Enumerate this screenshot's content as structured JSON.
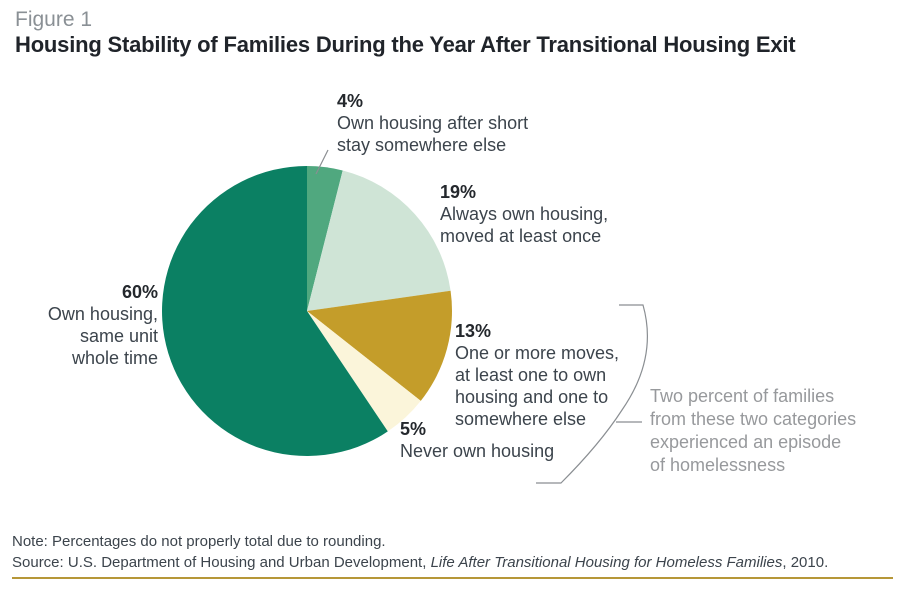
{
  "header": {
    "figure_label": "Figure 1",
    "title": "Housing Stability of Families During the Year After Transitional Housing Exit"
  },
  "chart_data": {
    "type": "pie",
    "title": "Housing Stability of Families During the Year After Transitional Housing Exit",
    "figure_label": "Figure 1",
    "start_angle_deg": -90,
    "direction": "clockwise",
    "legend_position": "labels-around-pie",
    "segments": [
      {
        "pct_label": "4%",
        "value": 4,
        "label": "Own housing after short stay somewhere else",
        "color": "#50a87f"
      },
      {
        "pct_label": "19%",
        "value": 19,
        "label": "Always own housing, moved at least once",
        "color": "#cfe4d6"
      },
      {
        "pct_label": "13%",
        "value": 13,
        "label": "One or more moves, at least one to own housing and one to somewhere else",
        "color": "#c49d2a"
      },
      {
        "pct_label": "5%",
        "value": 5,
        "label": "Never own housing",
        "color": "#fbf5da"
      },
      {
        "pct_label": "60%",
        "value": 60,
        "label": "Own housing, same unit whole time",
        "color": "#0b8063"
      }
    ],
    "annotation": "Two percent of families from these two categories experienced an episode of homelessness",
    "note": "Percentages do not properly total due to rounding."
  },
  "labels": {
    "seg4": {
      "pct": "4%",
      "lines": [
        "Own housing after short",
        "stay somewhere else"
      ]
    },
    "seg19": {
      "pct": "19%",
      "lines": [
        "Always own housing,",
        "moved at least once"
      ]
    },
    "seg60": {
      "pct": "60%",
      "lines": [
        "Own housing,",
        "same unit",
        "whole time"
      ]
    },
    "seg13": {
      "pct": "13%",
      "lines": [
        "One or more moves,",
        "at least one to own",
        "housing and one to",
        "somewhere else"
      ]
    },
    "seg5": {
      "pct": "5%",
      "lines": [
        "Never own housing"
      ]
    },
    "annotation_lines": [
      "Two percent of families",
      "from these two categories",
      "experienced an episode",
      "of homelessness"
    ]
  },
  "footer": {
    "note": "Note: Percentages do not properly total due to rounding.",
    "source_prefix": "Source: U.S. Department of Housing and Urban Development, ",
    "source_italic": "Life After Transitional Housing for Homeless Families",
    "source_suffix": ", 2010."
  },
  "colors": {
    "rule_gold": "#b69738",
    "line_gray": "#8a8e92",
    "annotation_gray": "#97999c",
    "figure_label_gray": "#8a9095"
  }
}
